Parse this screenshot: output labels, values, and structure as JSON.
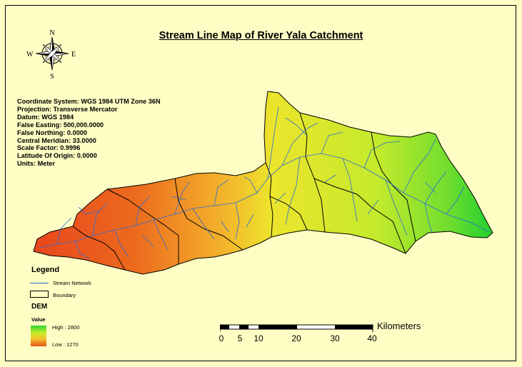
{
  "title": "Stream Line Map of River Yala Catchment",
  "compass": {
    "n": "N",
    "s": "S",
    "e": "E",
    "w": "W"
  },
  "coordinate_info": [
    "Coordinate System: WGS 1984 UTM Zone 36N",
    "Projection: Transverse Mercator",
    "Datum: WGS 1984",
    "False Easting: 500,000.0000",
    "False Northing: 0.0000",
    "Central Meridian: 33.0000",
    "Scale Factor: 0.9996",
    "Latitude Of Origin: 0.0000",
    "Units: Meter"
  ],
  "legend": {
    "title": "Legend",
    "stream_label": "Stream Network",
    "boundary_label": "Boundary",
    "dem_title": "DEM",
    "value_label": "Value",
    "high_label": "High : 2800",
    "low_label": "Low : 1270"
  },
  "scale": {
    "units": "Kilometers",
    "ticks": [
      "0",
      "5",
      "10",
      "20",
      "30",
      "40"
    ]
  },
  "colors": {
    "background": "#fefec4",
    "stream": "#2b6bd6",
    "dem_high": "#2fd42f",
    "dem_low": "#e85018"
  }
}
